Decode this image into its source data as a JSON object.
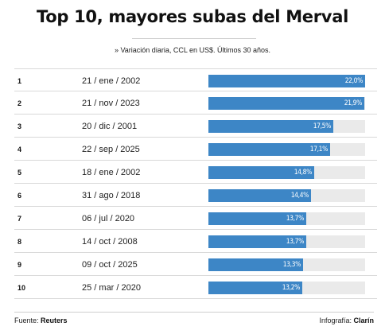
{
  "chart_data": {
    "type": "bar",
    "orientation": "horizontal",
    "title": "Top 10, mayores subas del Merval",
    "subtitle": "» Variación diaria, CCL en US$. Últimos 30 años.",
    "xlim": [
      0,
      22.0
    ],
    "rows": [
      {
        "rank": "1",
        "date": "21 / ene / 2002",
        "value": 22.0,
        "label": "22,0%"
      },
      {
        "rank": "2",
        "date": "21 / nov / 2023",
        "value": 21.9,
        "label": "21,9%"
      },
      {
        "rank": "3",
        "date": "20 / dic / 2001",
        "value": 17.5,
        "label": "17,5%"
      },
      {
        "rank": "4",
        "date": "22 / sep / 2025",
        "value": 17.1,
        "label": "17,1%"
      },
      {
        "rank": "5",
        "date": "18 / ene / 2002",
        "value": 14.8,
        "label": "14,8%"
      },
      {
        "rank": "6",
        "date": "31 / ago / 2018",
        "value": 14.4,
        "label": "14,4%"
      },
      {
        "rank": "7",
        "date": "06 / jul / 2020",
        "value": 13.7,
        "label": "13,7%"
      },
      {
        "rank": "8",
        "date": "14 / oct / 2008",
        "value": 13.7,
        "label": "13,7%"
      },
      {
        "rank": "9",
        "date": "09 / oct / 2025",
        "value": 13.3,
        "label": "13,3%"
      },
      {
        "rank": "10",
        "date": "25 / mar / 2020",
        "value": 13.2,
        "label": "13,2%"
      }
    ],
    "colors": {
      "bar": "#3d86c6",
      "track": "#eaeaea"
    }
  },
  "footer": {
    "source_prefix": "Fuente: ",
    "source_name": "Reuters",
    "credit_prefix": "Infografía: ",
    "credit_name": "Clarín"
  }
}
